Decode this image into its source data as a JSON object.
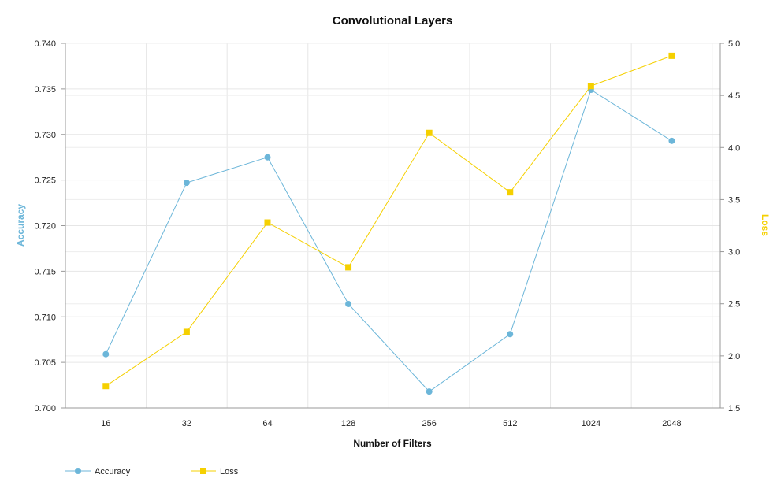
{
  "chart_data": {
    "type": "line",
    "title": "Convolutional Layers",
    "xlabel": "Number of Filters",
    "ylabel_left": "Accuracy",
    "ylabel_right": "Loss",
    "categories": [
      "16",
      "32",
      "64",
      "128",
      "256",
      "512",
      "1024",
      "2048"
    ],
    "y_left_ticks": [
      "0.700",
      "0.705",
      "0.710",
      "0.715",
      "0.720",
      "0.725",
      "0.730",
      "0.735",
      "0.740"
    ],
    "y_right_ticks": [
      "1.5",
      "2.0",
      "2.5",
      "3.0",
      "3.5",
      "4.0",
      "4.5",
      "5.0"
    ],
    "ylim_left": [
      0.7,
      0.74
    ],
    "ylim_right": [
      1.5,
      5.0
    ],
    "grid": true,
    "legend_position": "bottom-left",
    "series": [
      {
        "name": "Accuracy",
        "axis": "left",
        "marker": "circle",
        "color": "#6cb6d9",
        "values": [
          0.7059,
          0.7247,
          0.7275,
          0.7114,
          0.7018,
          0.7081,
          0.7349,
          0.7293
        ]
      },
      {
        "name": "Loss",
        "axis": "right",
        "marker": "square",
        "color": "#f5d000",
        "values": [
          1.71,
          2.23,
          3.28,
          2.85,
          4.14,
          3.57,
          4.59,
          4.88
        ]
      }
    ]
  }
}
